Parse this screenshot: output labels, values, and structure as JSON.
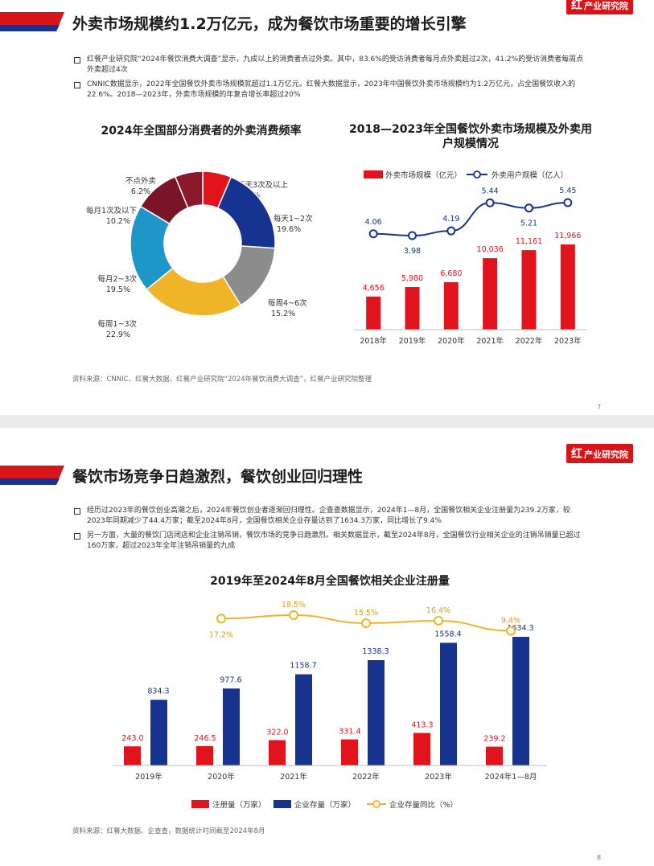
{
  "brand": {
    "logo_char": "红",
    "logo_text": "产业研究院",
    "colors": {
      "red": "#e1141e",
      "blue": "#16338f",
      "grey": "#8c8c8c",
      "yellow": "#f0b428",
      "teal": "#1e96c8",
      "maroon": "#7a1529"
    }
  },
  "slide1": {
    "title": "外卖市场规模约1.2万亿元，成为餐饮市场重要的增长引擎",
    "bullets": [
      "红餐产业研究院“2024年餐饮消费大调查”显示，九成以上的消费者点过外卖。其中，83.6%的受访消费者每月点外卖超过2次，41.2%的受访消费者每周点外卖超过4次",
      "CNNIC数据显示，2022年全国餐饮外卖市场规模就超过1.1万亿元。红餐大数据显示，2023年中国餐饮外卖市场规模约为1.2万亿元，占全国餐饮收入的22.6%。2018—2023年，外卖市场规模的年复合增长率超过20%"
    ],
    "left_chart_title": "2024年全国部分消费者的外卖消费频率",
    "right_chart_title": "2018—2023年全国餐饮外卖市场规模及外卖用户规模情况",
    "source": "资料来源：CNNIC、红餐大数据、红餐产业研究院“2024年餐饮消费大调查”，红餐产业研究院整理",
    "page": "7"
  },
  "slide2": {
    "title": "餐饮市场竞争日趋激烈，餐饮创业回归理性",
    "bullets": [
      "经历过2023年的餐饮创业高潮之后，2024年餐饮创业者逐渐回归理性。企查查数据显示，2024年1—8月，全国餐饮相关企业注册量为239.2万家，较2023年同期减少了44.4万家；截至2024年8月，全国餐饮相关企业存量达到了1634.3万家，同比增长了9.4%",
      "另一方面，大量的餐饮门店闭店和企业注销吊销，餐饮市场的竞争日趋激烈。相关数据显示，截至2024年8月，全国餐饮行业相关企业的注销吊销量已超过160万家，超过2023年全年注销吊销量的九成"
    ],
    "chart_title": "2019年至2024年8月全国餐饮相关企业注册量",
    "source": "资料来源：红餐大数据、企查查，数据统计时间截至2024年8月",
    "page": "8"
  },
  "chart_data": [
    {
      "type": "pie",
      "variant": "donut",
      "title": "2024年全国部分消费者的外卖消费频率",
      "slices": [
        {
          "label": "每天3次及以上",
          "value": 6.4,
          "display": "6.4%",
          "color": "#e1141e"
        },
        {
          "label": "每天1~2次",
          "value": 19.6,
          "display": "19.6%",
          "color": "#16338f"
        },
        {
          "label": "每周4~6次",
          "value": 15.2,
          "display": "15.2%",
          "color": "#8c8c8c"
        },
        {
          "label": "每周1~3次",
          "value": 22.9,
          "display": "22.9%",
          "color": "#f0b428"
        },
        {
          "label": "每月2~3次",
          "value": 19.5,
          "display": "19.5%",
          "color": "#1e96c8"
        },
        {
          "label": "每月1次及以下",
          "value": 10.2,
          "display": "10.2%",
          "color": "#7a1529"
        },
        {
          "label": "不点外卖",
          "value": 6.2,
          "display": "6.2%",
          "color": "#8a1a2b"
        }
      ]
    },
    {
      "type": "bar",
      "title": "2018—2023年全国餐饮外卖市场规模及外卖用户规模情况",
      "categories": [
        "2018年",
        "2019年",
        "2020年",
        "2021年",
        "2022年",
        "2023年"
      ],
      "series": [
        {
          "name": "外卖市场规模（亿元）",
          "kind": "bar",
          "color": "#e1141e",
          "values": [
            4656,
            5980,
            6680,
            10036,
            11161,
            11966
          ],
          "labels": [
            "4,656",
            "5,980",
            "6,680",
            "10,036",
            "11,161",
            "11,966"
          ]
        },
        {
          "name": "外卖用户规模（亿人）",
          "kind": "line",
          "color": "#16338f",
          "values": [
            4.06,
            3.98,
            4.19,
            5.44,
            5.21,
            5.45
          ],
          "labels": [
            "4.06",
            "3.98",
            "4.19",
            "5.44",
            "5.21",
            "5.45"
          ]
        }
      ],
      "legend": "top"
    },
    {
      "type": "bar",
      "title": "2019年至2024年8月全国餐饮相关企业注册量",
      "categories": [
        "2019年",
        "2020年",
        "2021年",
        "2022年",
        "2023年",
        "2024年1—8月"
      ],
      "series": [
        {
          "name": "注册量（万家）",
          "kind": "bar",
          "color": "#e1141e",
          "values": [
            243.0,
            246.5,
            322.0,
            331.4,
            413.3,
            239.2
          ],
          "labels": [
            "243.0",
            "246.5",
            "322.0",
            "331.4",
            "413.3",
            "239.2"
          ]
        },
        {
          "name": "企业存量（万家）",
          "kind": "bar",
          "color": "#16338f",
          "values": [
            834.3,
            977.6,
            1158.7,
            1338.3,
            1558.4,
            1634.3
          ],
          "labels": [
            "834.3",
            "977.6",
            "1158.7",
            "1338.3",
            "1558.4",
            "1634.3"
          ]
        },
        {
          "name": "企业存量同比（%）",
          "kind": "line",
          "color": "#f0b428",
          "values": [
            null,
            17.2,
            18.5,
            15.5,
            16.4,
            9.4
          ],
          "labels": [
            "",
            "17.2%",
            "18.5%",
            "15.5%",
            "16.4%",
            "9.4%"
          ]
        }
      ],
      "legend": "bottom"
    }
  ]
}
